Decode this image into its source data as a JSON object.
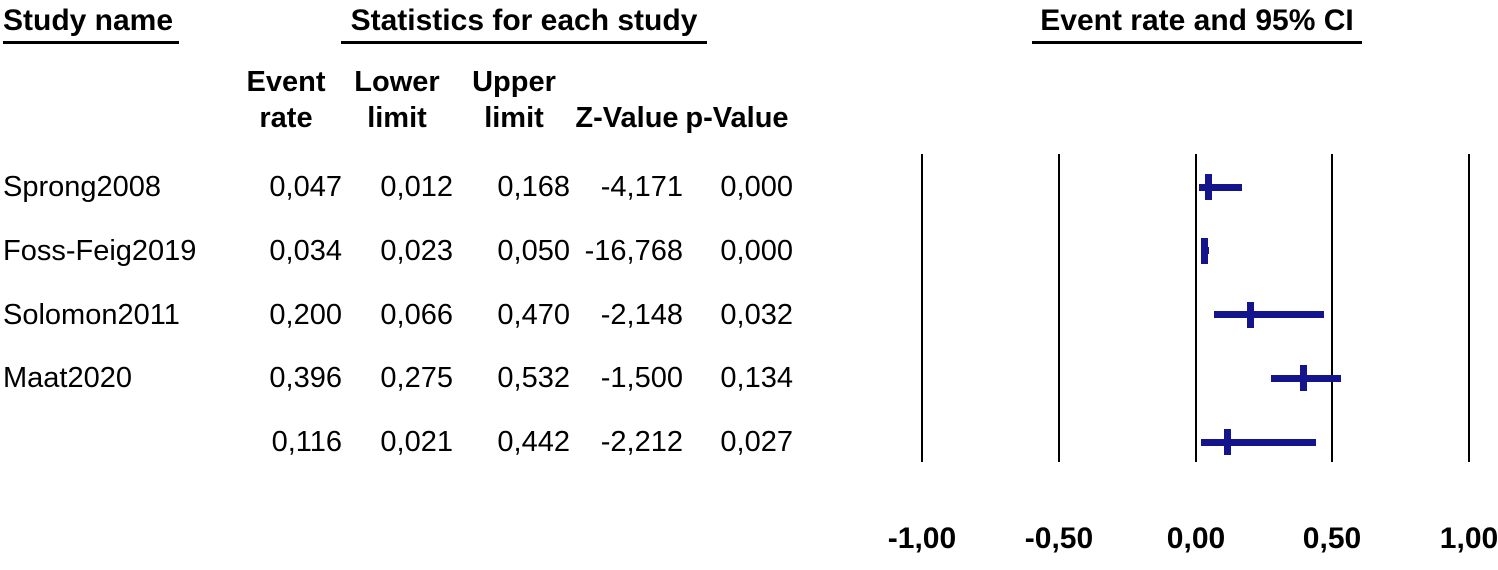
{
  "headers": {
    "study_col": "Study name",
    "stats_group": "Statistics for each study",
    "plot_group": "Event rate and 95% CI"
  },
  "table": {
    "columns": [
      {
        "key": "event_rate",
        "line1": "Event",
        "line2": "rate"
      },
      {
        "key": "lower",
        "line1": "Lower",
        "line2": "limit"
      },
      {
        "key": "upper",
        "line1": "Upper",
        "line2": "limit"
      },
      {
        "key": "z",
        "line1": "",
        "line2": "Z-Value"
      },
      {
        "key": "p",
        "line1": "",
        "line2": "p-Value"
      }
    ],
    "rows": [
      {
        "study": "Sprong2008",
        "event_rate": "0,047",
        "lower": "0,012",
        "upper": "0,168",
        "z": "-4,171",
        "p": "0,000"
      },
      {
        "study": "Foss-Feig2019",
        "event_rate": "0,034",
        "lower": "0,023",
        "upper": "0,050",
        "z": "-16,768",
        "p": "0,000"
      },
      {
        "study": "Solomon2011",
        "event_rate": "0,200",
        "lower": "0,066",
        "upper": "0,470",
        "z": "-2,148",
        "p": "0,032"
      },
      {
        "study": "Maat2020",
        "event_rate": "0,396",
        "lower": "0,275",
        "upper": "0,532",
        "z": "-1,500",
        "p": "0,134"
      },
      {
        "study": "",
        "event_rate": "0,116",
        "lower": "0,021",
        "upper": "0,442",
        "z": "-2,212",
        "p": "0,027"
      }
    ]
  },
  "chart_data": {
    "type": "scatter",
    "subtype": "forest-plot",
    "title": "Event rate and 95% CI",
    "xlabel": "Event rate",
    "xlim": [
      -1.0,
      1.0
    ],
    "x_ticks": [
      -1.0,
      -0.5,
      0.0,
      0.5,
      1.0
    ],
    "x_tick_labels": [
      "-1,00",
      "-0,50",
      "0,00",
      "0,50",
      "1,00"
    ],
    "grid": "vertical reference line at every x tick, no horizontal axis line",
    "legend": "none",
    "series": [
      {
        "name": "Sprong2008",
        "role": "study",
        "event_rate": 0.047,
        "lower": 0.012,
        "upper": 0.168,
        "z": -4.171,
        "p": 0.0
      },
      {
        "name": "Foss-Feig2019",
        "role": "study",
        "event_rate": 0.034,
        "lower": 0.023,
        "upper": 0.05,
        "z": -16.768,
        "p": 0.0
      },
      {
        "name": "Solomon2011",
        "role": "study",
        "event_rate": 0.2,
        "lower": 0.066,
        "upper": 0.47,
        "z": -2.148,
        "p": 0.032
      },
      {
        "name": "Maat2020",
        "role": "study",
        "event_rate": 0.396,
        "lower": 0.275,
        "upper": 0.532,
        "z": -1.5,
        "p": 0.134
      },
      {
        "name": "",
        "role": "summary",
        "event_rate": 0.116,
        "lower": 0.021,
        "upper": 0.442,
        "z": -2.212,
        "p": 0.027
      }
    ]
  },
  "colors": {
    "ci_marker": "#14148c",
    "axis_line": "#000000",
    "text": "#000000",
    "background": "#ffffff"
  }
}
